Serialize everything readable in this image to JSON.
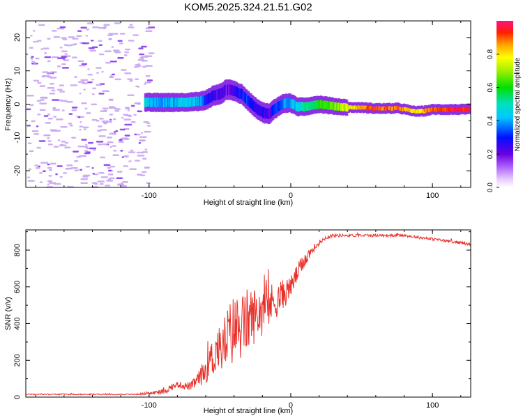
{
  "title": "KOM5.2025.324.21.51.G02",
  "colors": {
    "snr_line": "#e8302a",
    "scatter": "#c9a6f2",
    "axis": "#000000"
  },
  "chart_data": [
    {
      "type": "heatmap",
      "name": "spectrogram",
      "xlabel": "Height of straight line (km)",
      "ylabel": "Frequency (Hz)",
      "xlim": [
        -187,
        127
      ],
      "ylim": [
        -25,
        25
      ],
      "xticks": [
        -100,
        0,
        100
      ],
      "yticks": [
        -20,
        -10,
        0,
        10,
        20
      ],
      "noise_region_x": [
        -187,
        -100
      ],
      "ridge": {
        "x": [
          -103,
          -95,
          -85,
          -75,
          -65,
          -60,
          -55,
          -50,
          -45,
          -40,
          -35,
          -30,
          -25,
          -20,
          -15,
          -12,
          -8,
          -5,
          0,
          5,
          10,
          15,
          20,
          25,
          30,
          35,
          40,
          45,
          50,
          55,
          60,
          65,
          70,
          75,
          80,
          85,
          90,
          95,
          100,
          105,
          110,
          115,
          120,
          127
        ],
        "freq": [
          0.5,
          0.5,
          0.5,
          0.6,
          0.8,
          1.2,
          2.5,
          3.0,
          4.5,
          4.0,
          3.0,
          1.0,
          -1.0,
          -2.5,
          -3.0,
          -1.5,
          -0.5,
          0.3,
          0.3,
          -0.8,
          -0.8,
          -0.3,
          0.0,
          -0.3,
          -0.6,
          -0.8,
          -1.0,
          -1.0,
          -1.0,
          -1.2,
          -1.3,
          -1.3,
          -1.3,
          -1.2,
          -1.5,
          -2.0,
          -2.2,
          -2.0,
          -1.6,
          -1.6,
          -1.6,
          -1.6,
          -1.6,
          -1.5
        ],
        "amplitude": [
          0.45,
          0.4,
          0.4,
          0.45,
          0.4,
          0.3,
          0.25,
          0.2,
          0.2,
          0.25,
          0.3,
          0.3,
          0.25,
          0.25,
          0.2,
          0.3,
          0.35,
          0.4,
          0.4,
          0.45,
          0.5,
          0.55,
          0.6,
          0.6,
          0.65,
          0.7,
          0.75,
          0.8,
          0.85,
          0.9,
          0.9,
          0.9,
          0.9,
          0.9,
          0.85,
          0.8,
          0.8,
          0.85,
          0.9,
          0.9,
          0.9,
          0.95,
          0.95,
          0.95
        ]
      },
      "colorbar": {
        "label": "Normalized spectral amplitude",
        "range": [
          0.0,
          1.0
        ],
        "ticks": [
          "0.0",
          "0.2",
          "0.4",
          "0.6",
          "0.8"
        ]
      }
    },
    {
      "type": "line",
      "name": "snr",
      "xlabel": "Height of straight line (km)",
      "ylabel": "SNR (v/v)",
      "xlim": [
        -187,
        127
      ],
      "ylim": [
        0,
        910
      ],
      "xticks": [
        -100,
        0,
        100
      ],
      "yticks": [
        0,
        200,
        400,
        600,
        800
      ],
      "x": [
        -187,
        -170,
        -150,
        -130,
        -110,
        -100,
        -90,
        -85,
        -80,
        -75,
        -70,
        -65,
        -60,
        -58,
        -55,
        -52,
        -50,
        -45,
        -40,
        -35,
        -30,
        -25,
        -20,
        -15,
        -10,
        -5,
        0,
        5,
        10,
        15,
        20,
        25,
        30,
        40,
        50,
        60,
        70,
        80,
        90,
        100,
        110,
        120,
        127
      ],
      "y": [
        15,
        15,
        15,
        15,
        15,
        20,
        30,
        50,
        70,
        60,
        60,
        100,
        150,
        220,
        200,
        280,
        250,
        320,
        370,
        380,
        420,
        450,
        480,
        500,
        530,
        560,
        600,
        680,
        750,
        800,
        840,
        870,
        880,
        880,
        880,
        880,
        880,
        880,
        870,
        860,
        850,
        840,
        830
      ],
      "noise": [
        3,
        3,
        3,
        3,
        3,
        8,
        15,
        20,
        15,
        20,
        25,
        40,
        80,
        120,
        100,
        140,
        120,
        170,
        200,
        180,
        180,
        150,
        150,
        120,
        100,
        80,
        60,
        50,
        40,
        25,
        15,
        10,
        10,
        8,
        8,
        8,
        8,
        8,
        8,
        8,
        8,
        8,
        8
      ]
    }
  ]
}
